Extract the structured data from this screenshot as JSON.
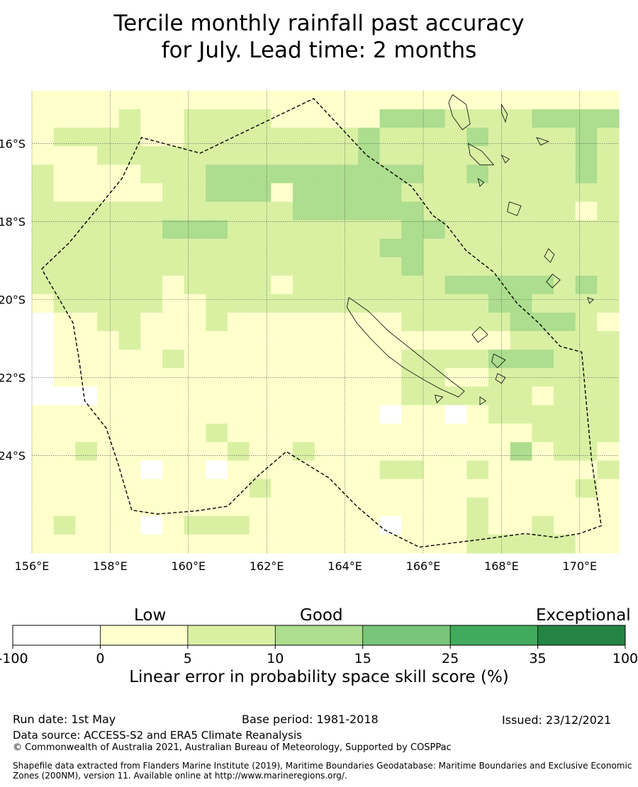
{
  "title_line1": "Tercile monthly rainfall past accuracy",
  "title_line2": "for July. Lead time: 2 months",
  "map": {
    "lon_range": [
      156,
      171
    ],
    "lat_range": [
      -26.5,
      -14.65
    ],
    "lon_ticks": [
      "156°E",
      "158°E",
      "160°E",
      "162°E",
      "164°E",
      "166°E",
      "168°E",
      "170°E"
    ],
    "lat_ticks": [
      "16°S",
      "18°S",
      "20°S",
      "22°S",
      "24°S"
    ],
    "palette": {
      "w": "#ffffff",
      "a": "#ffffcc",
      "b": "#d9f0a3",
      "c": "#addd8e",
      "d": "#78c679",
      "e": "#41ab5d",
      "f": "#238443"
    },
    "grid_rows": [
      "aaaaaaaaaaaaaaaaaaaaaaaaaaa",
      "aaaabaabbbbaaaaacccbbbbcccc",
      "abbbbaabbbbbbbbcbbbbcbbbbcb",
      "aaabbbbbbbbbbbbcbbbbbbbbbcb",
      "baaaabbbccccccccccbbcbbbbcb",
      "baaaaabbcccacccccbbbbbbbbbb",
      "bbbbbbbbbbbbccccccbbbbbbbab",
      "bbbbbbcccbbbbbbbbccbbbbbbbb",
      "bbbbbbbbbbbbbbbbccbbbbbbbbb",
      "bbbbbbbbbbbbbbbbbcbbbbbbbbb",
      "bbbbbbabbbbabbbbbbbcccccbcb",
      "abbbbbaabbbbbbbbbbbbbccbbbb",
      "waabbaaabaaaaaaaabbbbbcccba",
      "waaabaaaaaaaaaaaaaaaaabbbbb",
      "waaaaabaaaaaaaaaabbbbcccbbb",
      "waaaaaaaaaaaaaaaabbaabbbbbb",
      "wwwaaaaaaaaaaaaaabbbbbbabbb",
      "aaaaaaaaaaaaaaaawaawabbbbbb",
      "aaaaaaaabaaaaaaaaaaaaaabbbb",
      "aabaaaaaabaabaaaaaaaaacabba",
      "aaaaawaawaaaaaaabbaabaaaaab",
      "aaaaaaaaaabaaaaaaaaaaaaaaba",
      "aaaaaaaaaaaaaaaaaaaabaaaaaa",
      "abaaawabbbaaaaaawaaabaabaaa",
      "aaaaaaaaaaaaaaaaaaaabbbbbaa"
    ],
    "eez_boundary": [
      [
        156.25,
        -19.22
      ],
      [
        156.95,
        -18.55
      ],
      [
        157.65,
        -17.7
      ],
      [
        158.3,
        -16.9
      ],
      [
        158.8,
        -15.85
      ],
      [
        160.3,
        -16.25
      ],
      [
        163.2,
        -14.85
      ],
      [
        164.55,
        -16.3
      ],
      [
        165.7,
        -17.1
      ],
      [
        166.25,
        -17.85
      ],
      [
        166.6,
        -18.1
      ],
      [
        167.1,
        -18.75
      ],
      [
        167.8,
        -19.3
      ],
      [
        168.4,
        -20.1
      ],
      [
        168.95,
        -20.6
      ],
      [
        169.5,
        -21.2
      ],
      [
        170.05,
        -21.35
      ],
      [
        170.3,
        -24.1
      ],
      [
        170.55,
        -25.8
      ],
      [
        170.0,
        -26.0
      ],
      [
        169.4,
        -26.1
      ],
      [
        168.6,
        -26.0
      ],
      [
        167.5,
        -26.15
      ],
      [
        165.9,
        -26.35
      ],
      [
        165.0,
        -25.9
      ],
      [
        164.3,
        -25.3
      ],
      [
        163.6,
        -24.58
      ],
      [
        162.5,
        -23.9
      ],
      [
        161.8,
        -24.5
      ],
      [
        161.0,
        -25.3
      ],
      [
        160.2,
        -25.42
      ],
      [
        159.2,
        -25.5
      ],
      [
        158.55,
        -25.4
      ],
      [
        158.2,
        -24.2
      ],
      [
        157.9,
        -23.3
      ],
      [
        157.35,
        -22.6
      ],
      [
        157.2,
        -21.5
      ],
      [
        157.05,
        -20.6
      ],
      [
        156.25,
        -19.22
      ]
    ],
    "islands": [
      [
        [
          164.1,
          -19.95
        ],
        [
          164.6,
          -20.3
        ],
        [
          165.1,
          -20.8
        ],
        [
          165.6,
          -21.2
        ],
        [
          166.1,
          -21.6
        ],
        [
          166.6,
          -22.0
        ],
        [
          167.05,
          -22.35
        ],
        [
          166.9,
          -22.5
        ],
        [
          166.45,
          -22.3
        ],
        [
          166.0,
          -22.05
        ],
        [
          165.5,
          -21.75
        ],
        [
          165.1,
          -21.45
        ],
        [
          164.65,
          -21.0
        ],
        [
          164.3,
          -20.6
        ],
        [
          164.05,
          -20.2
        ]
      ],
      [
        [
          166.75,
          -14.75
        ],
        [
          167.1,
          -15.0
        ],
        [
          167.2,
          -15.5
        ],
        [
          167.0,
          -15.65
        ],
        [
          166.75,
          -15.3
        ],
        [
          166.65,
          -14.95
        ]
      ],
      [
        [
          168.0,
          -15.0
        ],
        [
          168.15,
          -15.25
        ],
        [
          168.1,
          -15.45
        ],
        [
          168.0,
          -15.2
        ]
      ],
      [
        [
          167.15,
          -16.0
        ],
        [
          167.5,
          -16.2
        ],
        [
          167.8,
          -16.55
        ],
        [
          167.45,
          -16.55
        ],
        [
          167.2,
          -16.3
        ]
      ],
      [
        [
          168.2,
          -17.5
        ],
        [
          168.5,
          -17.6
        ],
        [
          168.4,
          -17.85
        ],
        [
          168.15,
          -17.75
        ]
      ],
      [
        [
          169.2,
          -18.7
        ],
        [
          169.35,
          -18.85
        ],
        [
          169.25,
          -19.05
        ],
        [
          169.1,
          -18.9
        ]
      ],
      [
        [
          169.3,
          -19.35
        ],
        [
          169.5,
          -19.5
        ],
        [
          169.3,
          -19.7
        ],
        [
          169.15,
          -19.55
        ]
      ],
      [
        [
          167.45,
          -20.7
        ],
        [
          167.65,
          -20.9
        ],
        [
          167.4,
          -21.1
        ],
        [
          167.25,
          -20.9
        ]
      ],
      [
        [
          167.8,
          -21.4
        ],
        [
          168.1,
          -21.55
        ],
        [
          167.9,
          -21.75
        ],
        [
          167.75,
          -21.6
        ]
      ],
      [
        [
          168.0,
          -16.3
        ],
        [
          168.2,
          -16.4
        ],
        [
          168.1,
          -16.5
        ]
      ],
      [
        [
          167.4,
          -16.9
        ],
        [
          167.55,
          -17.0
        ],
        [
          167.45,
          -17.1
        ]
      ],
      [
        [
          166.3,
          -22.45
        ],
        [
          166.35,
          -22.65
        ],
        [
          166.5,
          -22.5
        ]
      ],
      [
        [
          167.9,
          -21.9
        ],
        [
          168.1,
          -22.0
        ],
        [
          168.0,
          -22.15
        ],
        [
          167.85,
          -22.05
        ]
      ],
      [
        [
          168.9,
          -15.85
        ],
        [
          169.2,
          -15.95
        ],
        [
          169.0,
          -16.05
        ]
      ],
      [
        [
          167.45,
          -22.5
        ],
        [
          167.6,
          -22.6
        ],
        [
          167.45,
          -22.7
        ]
      ],
      [
        [
          170.2,
          -19.95
        ],
        [
          170.35,
          -20.0
        ],
        [
          170.25,
          -20.1
        ]
      ]
    ]
  },
  "colorbar": {
    "group_labels": [
      "Low",
      "Good",
      "Exceptional"
    ],
    "ticks": [
      "-100",
      "0",
      "5",
      "10",
      "15",
      "25",
      "35",
      "100"
    ],
    "colors": [
      "#ffffff",
      "#ffffcc",
      "#d9f0a3",
      "#addd8e",
      "#78c679",
      "#41ab5d",
      "#238443"
    ],
    "label": "Linear error in probability space skill score (%)"
  },
  "footer": {
    "run_date": "Run date: 1st May",
    "base_period": "Base period: 1981-2018",
    "issued": "Issued: 23/12/2021",
    "data_source": "Data source: ACCESS-S2 and ERA5 Climate Reanalysis",
    "copyright": "© Commonwealth of Australia 2021, Australian Bureau of Meteorology, Supported by COSPPac",
    "shapefile_line1": "Shapefile data extracted from Flanders Marine Institute (2019), Maritime Boundaries Geodatabase: Maritime Boundaries and Exclusive Economic",
    "shapefile_line2": "Zones (200NM), version 11. Available online at http://www.marineregions.org/."
  }
}
